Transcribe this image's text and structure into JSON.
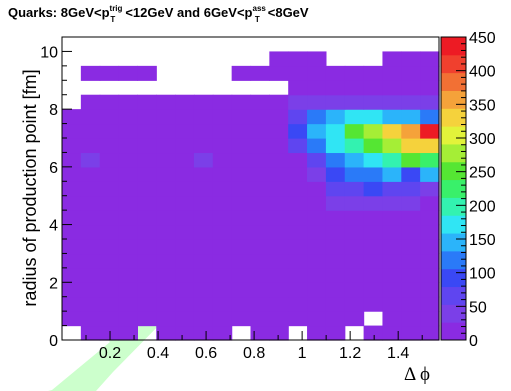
{
  "chart_data": {
    "type": "heatmap",
    "title": {
      "lead": "Quarks: 8GeV<p",
      "sup1": "trig",
      "sub1": "T",
      "mid": "<12GeV and 6GeV<p",
      "sup2": "ass",
      "sub2": "T",
      "tail": "<8GeV"
    },
    "xlabel": "Δ ϕ",
    "ylabel": "radius of production point [fm]",
    "xlim": [
      0,
      1.57
    ],
    "ylim": [
      0,
      10.5
    ],
    "xticks": [
      0.2,
      0.4,
      0.6,
      0.8,
      1,
      1.2,
      1.4
    ],
    "xtick_labels": [
      "0.2",
      "0.4",
      "0.6",
      "0.8",
      "1",
      "1.2",
      "1.4"
    ],
    "yticks": [
      0,
      2,
      4,
      6,
      8,
      10
    ],
    "ytick_labels": [
      "0",
      "2",
      "4",
      "6",
      "8",
      "10"
    ],
    "colorbar": {
      "min": 0,
      "max": 450,
      "ticks": [
        0,
        50,
        100,
        150,
        200,
        250,
        300,
        350,
        400,
        450
      ],
      "tick_labels": [
        "0",
        "50",
        "100",
        "150",
        "200",
        "250",
        "300",
        "350",
        "400",
        "450"
      ]
    },
    "bins": {
      "nx": 20,
      "ny": 21,
      "x_width": 0.0785,
      "y_width": 0.5
    },
    "cells": [
      [
        0,
        1,
        2,
        3,
        4,
        5,
        6,
        7,
        8,
        9,
        10,
        11,
        12,
        13,
        14,
        15,
        16,
        17,
        18,
        19
      ],
      [
        0,
        1,
        2,
        3,
        4,
        5,
        6,
        7,
        8,
        9,
        10,
        11,
        12,
        13,
        14,
        15,
        16,
        17,
        18,
        19
      ],
      [
        0,
        1,
        2,
        3,
        4,
        5,
        6,
        7,
        8,
        9,
        10,
        11,
        12,
        13,
        14,
        15,
        16,
        17,
        18,
        19
      ],
      [
        0,
        1,
        2,
        3,
        4,
        5,
        6,
        7,
        8,
        9,
        10,
        11,
        12,
        13,
        14,
        15,
        16,
        17,
        18,
        19
      ],
      [
        0,
        1,
        2,
        3,
        4,
        5,
        6,
        7,
        8,
        9,
        10,
        11,
        12,
        13,
        14,
        15,
        16,
        17,
        18,
        19
      ]
    ],
    "values": [
      [
        0,
        10,
        10,
        10,
        0,
        10,
        10,
        10,
        10,
        0,
        10,
        10,
        0,
        10,
        10,
        0,
        10,
        10,
        10,
        10
      ],
      [
        10,
        10,
        10,
        10,
        10,
        10,
        10,
        10,
        10,
        10,
        10,
        10,
        10,
        10,
        10,
        10,
        0,
        10,
        10,
        10
      ],
      [
        10,
        10,
        10,
        10,
        10,
        10,
        10,
        10,
        10,
        10,
        10,
        10,
        10,
        10,
        10,
        10,
        10,
        10,
        10,
        10
      ],
      [
        10,
        10,
        10,
        10,
        10,
        10,
        10,
        10,
        10,
        10,
        10,
        10,
        10,
        10,
        10,
        10,
        10,
        10,
        10,
        10
      ],
      [
        10,
        10,
        10,
        10,
        10,
        10,
        10,
        10,
        10,
        10,
        10,
        10,
        10,
        10,
        10,
        10,
        10,
        10,
        10,
        10
      ],
      [
        10,
        10,
        10,
        10,
        10,
        10,
        10,
        10,
        10,
        10,
        10,
        10,
        10,
        10,
        10,
        10,
        10,
        10,
        10,
        10
      ],
      [
        10,
        10,
        10,
        10,
        10,
        10,
        10,
        10,
        10,
        10,
        10,
        10,
        10,
        10,
        10,
        10,
        10,
        10,
        10,
        10
      ],
      [
        10,
        10,
        10,
        10,
        10,
        10,
        10,
        10,
        10,
        10,
        10,
        10,
        10,
        10,
        10,
        10,
        10,
        10,
        10,
        10
      ],
      [
        10,
        10,
        10,
        10,
        10,
        10,
        10,
        10,
        10,
        10,
        10,
        10,
        10,
        10,
        10,
        10,
        10,
        10,
        10,
        10
      ],
      [
        10,
        10,
        10,
        10,
        10,
        10,
        10,
        10,
        10,
        10,
        10,
        10,
        10,
        10,
        35,
        40,
        45,
        35,
        30,
        25
      ],
      [
        10,
        10,
        10,
        10,
        10,
        10,
        10,
        10,
        10,
        10,
        10,
        10,
        10,
        10,
        60,
        70,
        80,
        75,
        65,
        50
      ],
      [
        10,
        10,
        10,
        10,
        10,
        10,
        10,
        10,
        10,
        10,
        10,
        10,
        10,
        35,
        80,
        110,
        120,
        135,
        80,
        150
      ],
      [
        10,
        30,
        10,
        10,
        10,
        10,
        10,
        30,
        10,
        10,
        10,
        10,
        10,
        55,
        110,
        140,
        180,
        200,
        240,
        230
      ],
      [
        10,
        10,
        10,
        10,
        10,
        10,
        10,
        10,
        10,
        10,
        10,
        10,
        60,
        120,
        160,
        200,
        240,
        290,
        330,
        320
      ],
      [
        10,
        10,
        10,
        10,
        10,
        10,
        10,
        10,
        10,
        10,
        10,
        10,
        80,
        140,
        180,
        240,
        280,
        320,
        360,
        450
      ],
      [
        10,
        10,
        10,
        10,
        10,
        10,
        10,
        10,
        10,
        10,
        10,
        10,
        70,
        120,
        150,
        160,
        170,
        150,
        140,
        130
      ],
      [
        0,
        10,
        10,
        10,
        10,
        10,
        10,
        10,
        10,
        10,
        10,
        10,
        40,
        40,
        40,
        40,
        40,
        40,
        40,
        40
      ],
      [
        0,
        0,
        0,
        0,
        0,
        0,
        0,
        0,
        0,
        0,
        0,
        0,
        10,
        10,
        10,
        10,
        10,
        10,
        10,
        10
      ],
      [
        0,
        10,
        10,
        10,
        10,
        0,
        0,
        0,
        0,
        10,
        10,
        10,
        10,
        10,
        10,
        10,
        10,
        10,
        10,
        10
      ],
      [
        0,
        0,
        0,
        0,
        0,
        0,
        0,
        0,
        0,
        0,
        0,
        10,
        10,
        10,
        0,
        0,
        0,
        10,
        10,
        10
      ],
      [
        0,
        0,
        0,
        0,
        0,
        0,
        0,
        0,
        0,
        0,
        0,
        0,
        0,
        0,
        0,
        0,
        0,
        0,
        0,
        0
      ]
    ]
  },
  "colors": {
    "frame": "#000000",
    "background": "#ffffff",
    "arrow_fill": "#ccffcc"
  }
}
